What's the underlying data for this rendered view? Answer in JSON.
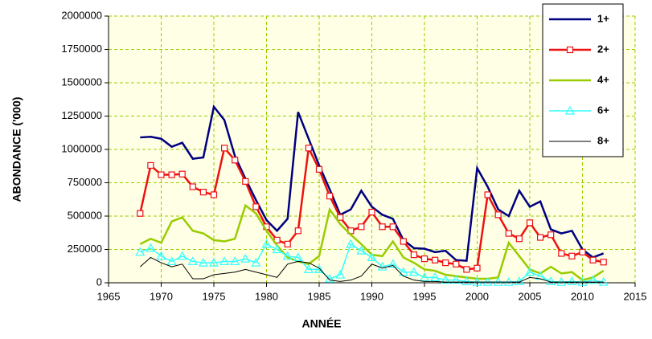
{
  "chart_data": {
    "type": "line",
    "x_label": "ANNÉE",
    "y_label": "ABONDANCE   ('000)",
    "x": [
      1968,
      1969,
      1970,
      1971,
      1972,
      1973,
      1974,
      1975,
      1976,
      1977,
      1978,
      1979,
      1980,
      1981,
      1982,
      1983,
      1984,
      1985,
      1986,
      1987,
      1988,
      1989,
      1990,
      1991,
      1992,
      1993,
      1994,
      1995,
      1996,
      1997,
      1998,
      1999,
      2000,
      2001,
      2002,
      2003,
      2004,
      2005,
      2006,
      2007,
      2008,
      2009,
      2010,
      2011,
      2012
    ],
    "series": [
      {
        "name": "1+",
        "color": "#000080",
        "linewidth": 2.5,
        "marker": null,
        "values": [
          1090000,
          1095000,
          1080000,
          1020000,
          1050000,
          930000,
          940000,
          1320000,
          1220000,
          950000,
          780000,
          620000,
          470000,
          390000,
          480000,
          1280000,
          1080000,
          880000,
          700000,
          510000,
          550000,
          690000,
          570000,
          510000,
          480000,
          320000,
          260000,
          255000,
          230000,
          240000,
          170000,
          165000,
          860000,
          720000,
          550000,
          500000,
          690000,
          570000,
          610000,
          400000,
          370000,
          390000,
          250000,
          190000,
          220000
        ]
      },
      {
        "name": "2+",
        "color": "#ee1111",
        "linewidth": 2.5,
        "marker": "square",
        "values": [
          520000,
          880000,
          810000,
          810000,
          815000,
          720000,
          680000,
          660000,
          1010000,
          920000,
          760000,
          570000,
          420000,
          320000,
          290000,
          390000,
          1010000,
          850000,
          650000,
          490000,
          390000,
          420000,
          530000,
          420000,
          420000,
          310000,
          210000,
          180000,
          170000,
          150000,
          140000,
          100000,
          110000,
          660000,
          510000,
          370000,
          330000,
          450000,
          340000,
          360000,
          220000,
          200000,
          230000,
          170000,
          155000
        ]
      },
      {
        "name": "4+",
        "color": "#99cc00",
        "linewidth": 2.5,
        "marker": null,
        "values": [
          290000,
          330000,
          300000,
          460000,
          490000,
          390000,
          370000,
          320000,
          310000,
          330000,
          580000,
          520000,
          390000,
          280000,
          190000,
          160000,
          140000,
          200000,
          550000,
          440000,
          360000,
          290000,
          210000,
          200000,
          310000,
          190000,
          150000,
          100000,
          90000,
          60000,
          50000,
          40000,
          30000,
          30000,
          40000,
          300000,
          200000,
          100000,
          70000,
          120000,
          70000,
          80000,
          20000,
          40000,
          90000
        ]
      },
      {
        "name": "6+",
        "color": "#33ffff",
        "linewidth": 1.5,
        "marker": "triangle",
        "values": [
          230000,
          260000,
          200000,
          160000,
          200000,
          160000,
          150000,
          150000,
          160000,
          160000,
          180000,
          150000,
          290000,
          250000,
          200000,
          190000,
          100000,
          100000,
          30000,
          60000,
          290000,
          240000,
          190000,
          120000,
          140000,
          80000,
          80000,
          40000,
          40000,
          20000,
          20000,
          10000,
          5000,
          5000,
          5000,
          5000,
          10000,
          80000,
          50000,
          10000,
          5000,
          10000,
          5000,
          20000,
          5000
        ]
      },
      {
        "name": "8+",
        "color": "#000000",
        "linewidth": 1,
        "marker": null,
        "values": [
          120000,
          190000,
          150000,
          120000,
          140000,
          30000,
          30000,
          60000,
          70000,
          80000,
          100000,
          80000,
          60000,
          40000,
          140000,
          160000,
          150000,
          110000,
          20000,
          10000,
          20000,
          50000,
          140000,
          110000,
          130000,
          50000,
          20000,
          10000,
          10000,
          5000,
          5000,
          5000,
          5000,
          5000,
          5000,
          5000,
          5000,
          40000,
          30000,
          5000,
          5000,
          5000,
          5000,
          5000,
          5000
        ]
      }
    ],
    "xlim": [
      1965,
      2015
    ],
    "xticks": [
      1965,
      1970,
      1975,
      1980,
      1985,
      1990,
      1995,
      2000,
      2005,
      2010,
      2015
    ],
    "ylim": [
      0,
      2000000
    ],
    "yticks": [
      0,
      250000,
      500000,
      750000,
      1000000,
      1250000,
      1500000,
      1750000,
      2000000
    ],
    "grid": true,
    "legend": "top-right",
    "background": "#ffffe6"
  }
}
